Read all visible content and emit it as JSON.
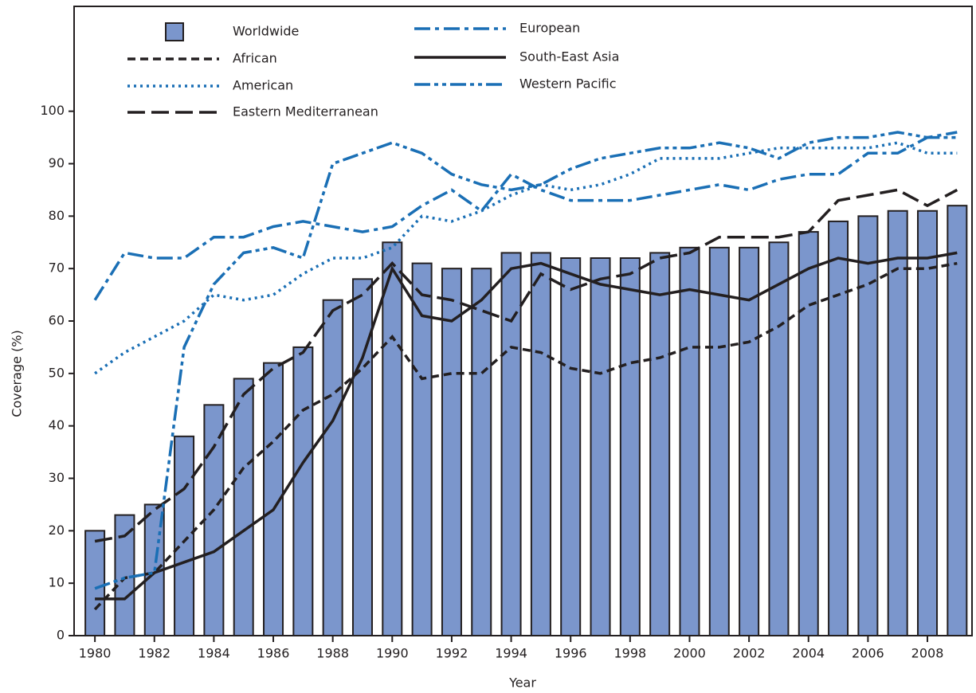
{
  "chart_data": {
    "type": "bar-line",
    "x_label": "Year",
    "y_label": "Coverage (%)",
    "x": [
      1980,
      1981,
      1982,
      1983,
      1984,
      1985,
      1986,
      1987,
      1988,
      1989,
      1990,
      1991,
      1992,
      1993,
      1994,
      1995,
      1996,
      1997,
      1998,
      1999,
      2000,
      2001,
      2002,
      2003,
      2004,
      2005,
      2006,
      2007,
      2008,
      2009
    ],
    "xlim": [
      1979.3,
      2009.5
    ],
    "xticks": [
      1980,
      1982,
      1984,
      1986,
      1988,
      1990,
      1992,
      1994,
      1996,
      1998,
      2000,
      2002,
      2004,
      2006,
      2008
    ],
    "ylim": [
      0,
      120
    ],
    "yticks": [
      0,
      10,
      20,
      30,
      40,
      50,
      60,
      70,
      80,
      90,
      100
    ],
    "series": [
      {
        "name": "Worldwide",
        "kind": "bar",
        "color": "#7b96cc",
        "values": [
          20,
          23,
          25,
          38,
          44,
          49,
          52,
          55,
          64,
          68,
          75,
          71,
          70,
          70,
          73,
          73,
          72,
          72,
          72,
          73,
          74,
          74,
          74,
          75,
          77,
          79,
          80,
          81,
          81,
          82
        ]
      },
      {
        "name": "African",
        "kind": "line",
        "line_style": "short-dash",
        "color": "#231f20",
        "values": [
          5,
          11,
          12,
          18,
          24,
          32,
          37,
          43,
          46,
          51,
          57,
          49,
          50,
          50,
          55,
          54,
          51,
          50,
          52,
          53,
          55,
          55,
          56,
          59,
          63,
          65,
          67,
          70,
          70,
          71
        ]
      },
      {
        "name": "American",
        "kind": "line",
        "line_style": "dotted",
        "color": "#1a6fb5",
        "values": [
          50,
          54,
          57,
          60,
          65,
          64,
          65,
          69,
          72,
          72,
          74,
          80,
          79,
          81,
          84,
          86,
          85,
          86,
          88,
          91,
          91,
          91,
          92,
          93,
          93,
          93,
          93,
          94,
          92,
          92
        ]
      },
      {
        "name": "Eastern Mediterranean",
        "kind": "line",
        "line_style": "long-dash",
        "color": "#231f20",
        "values": [
          18,
          19,
          24,
          28,
          36,
          46,
          51,
          54,
          62,
          65,
          71,
          65,
          64,
          62,
          60,
          69,
          66,
          68,
          69,
          72,
          73,
          76,
          76,
          76,
          77,
          83,
          84,
          85,
          82,
          85
        ]
      },
      {
        "name": "European",
        "kind": "line",
        "line_style": "dash-dot",
        "color": "#1a6fb5",
        "values": [
          64,
          73,
          72,
          72,
          76,
          76,
          78,
          79,
          78,
          77,
          78,
          82,
          85,
          81,
          88,
          85,
          83,
          83,
          83,
          84,
          85,
          86,
          85,
          87,
          88,
          88,
          92,
          92,
          95,
          96
        ]
      },
      {
        "name": "South-East Asia",
        "kind": "line",
        "line_style": "solid",
        "color": "#231f20",
        "values": [
          7,
          7,
          12,
          14,
          16,
          20,
          24,
          33,
          41,
          53,
          70,
          61,
          60,
          64,
          70,
          71,
          69,
          67,
          66,
          65,
          66,
          65,
          64,
          67,
          70,
          72,
          71,
          72,
          72,
          73
        ]
      },
      {
        "name": "Western Pacific",
        "kind": "line",
        "line_style": "dash-dot-dot",
        "color": "#1a6fb5",
        "values": [
          9,
          11,
          12,
          55,
          67,
          73,
          74,
          72,
          90,
          92,
          94,
          92,
          88,
          86,
          85,
          86,
          89,
          91,
          92,
          93,
          93,
          94,
          93,
          91,
          94,
          95,
          95,
          96,
          95,
          95
        ]
      }
    ]
  }
}
